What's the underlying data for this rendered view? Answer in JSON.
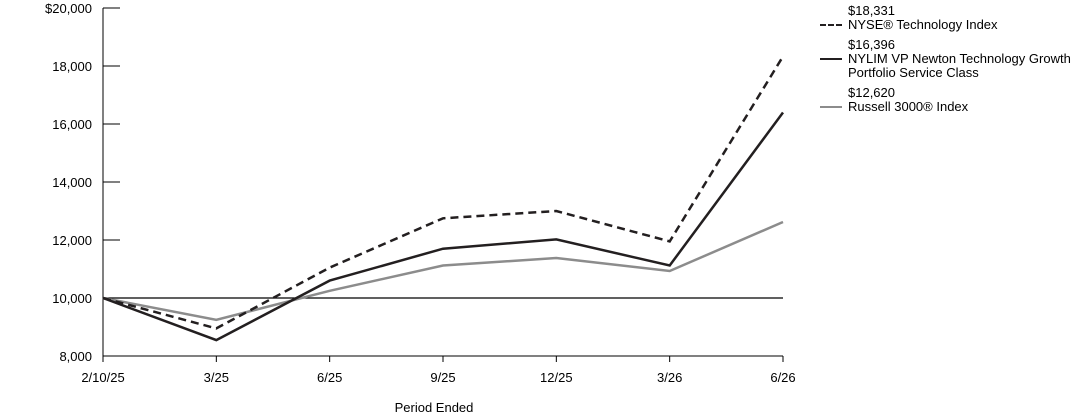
{
  "chart_data": {
    "type": "line",
    "categories": [
      "2/10/25",
      "3/25",
      "6/25",
      "9/25",
      "12/25",
      "3/26",
      "6/26"
    ],
    "xlabel": "Period Ended",
    "ylabel": "",
    "ylim": [
      8000,
      20000
    ],
    "y_ticks": [
      8000,
      10000,
      12000,
      14000,
      16000,
      18000,
      20000
    ],
    "y_tick_labels": [
      "8,000",
      "10,000",
      "12,000",
      "14,000",
      "16,000",
      "18,000",
      "$20,000"
    ],
    "reference_line": 10000,
    "grid": false,
    "legend_position": "right",
    "series": [
      {
        "name": "NYSE® Technology Index",
        "end_label": "$18,331",
        "style": "dashed",
        "color": "#231f20",
        "values": [
          10000,
          8950,
          11050,
          12750,
          13000,
          11950,
          18331
        ]
      },
      {
        "name": "NYLIM VP Newton Technology Growth Portfolio Service Class",
        "end_label": "$16,396",
        "style": "solid",
        "color": "#231f20",
        "values": [
          10000,
          8550,
          10600,
          11700,
          12020,
          11120,
          16396
        ]
      },
      {
        "name": "Russell 3000® Index",
        "end_label": "$12,620",
        "style": "solid",
        "color": "#8c8c8c",
        "values": [
          10000,
          9250,
          10250,
          11120,
          11380,
          10930,
          12620
        ]
      }
    ]
  }
}
